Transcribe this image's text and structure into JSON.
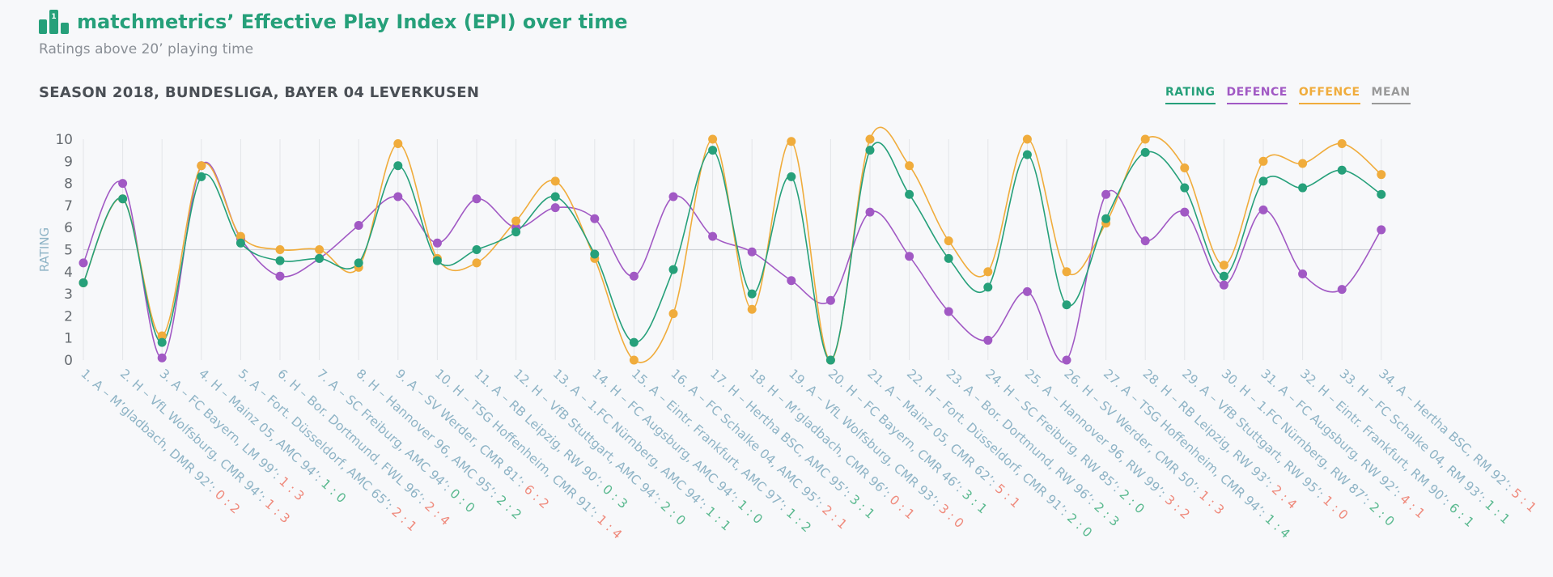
{
  "header": {
    "title": "matchmetrics’ Effective Play Index (EPI) over time",
    "subtitle": "Ratings above 20’ playing time",
    "season": "SEASON 2018, BUNDESLIGA, BAYER 04 LEVERKUSEN",
    "icon": "podium-icon"
  },
  "legend": {
    "rating": "RATING",
    "defence": "DEFENCE",
    "offence": "OFFENCE",
    "mean": "MEAN"
  },
  "colors": {
    "rating": "#26a07a",
    "defence": "#a159c4",
    "offence": "#f0ac3c",
    "mean": "#999999",
    "score_win": "#5ab98f",
    "score_loss": "#ef8a7c",
    "tick": "#8fb4c6"
  },
  "chart_data": {
    "type": "line",
    "ylabel": "RATING",
    "ylim": [
      0,
      10
    ],
    "yticks": [
      0,
      1,
      2,
      3,
      4,
      5,
      6,
      7,
      8,
      9,
      10
    ],
    "mean_line": 5,
    "categories": [
      {
        "label": "1. A – M’gladbach, DMR 92’: ",
        "score": "0 : 2",
        "result": "loss"
      },
      {
        "label": "2. H – VfL Wolfsburg, CMR 94’: ",
        "score": "1 : 3",
        "result": "loss"
      },
      {
        "label": "3. A – FC Bayern, LM 99’: ",
        "score": "1 : 3",
        "result": "loss"
      },
      {
        "label": "4. H – Mainz 05, AMC 94’: ",
        "score": "1 : 0",
        "result": "win"
      },
      {
        "label": "5. A – Fort. Düsseldorf, AMC 65’: ",
        "score": "2 : 1",
        "result": "loss"
      },
      {
        "label": "6. H – Bor. Dortmund, FWL 96’: ",
        "score": "2 : 4",
        "result": "loss"
      },
      {
        "label": "7. A – SC Freiburg, AMC 94’: ",
        "score": "0 : 0",
        "result": "draw"
      },
      {
        "label": "8. H – Hannover 96, AMC 95’: ",
        "score": "2 : 2",
        "result": "draw"
      },
      {
        "label": "9. A – SV Werder, CMR 81’: ",
        "score": "6 : 2",
        "result": "loss"
      },
      {
        "label": "10. H – TSG Hoffenheim, CMR 91’: ",
        "score": "1 : 4",
        "result": "loss"
      },
      {
        "label": "11. A – RB Leipzig, RW 90’: ",
        "score": "0 : 3",
        "result": "win"
      },
      {
        "label": "12. H – VfB Stuttgart, AMC 94’: ",
        "score": "2 : 0",
        "result": "win"
      },
      {
        "label": "13. A – 1.FC Nürnberg, AMC 94’: ",
        "score": "1 : 1",
        "result": "draw"
      },
      {
        "label": "14. H – FC Augsburg, AMC 94’: ",
        "score": "1 : 0",
        "result": "win"
      },
      {
        "label": "15. A – Eintr. Frankfurt, AMC 97’: ",
        "score": "1 : 2",
        "result": "win"
      },
      {
        "label": "16. A – FC Schalke 04, AMC 95’: ",
        "score": "2 : 1",
        "result": "loss"
      },
      {
        "label": "17. H – Hertha BSC, AMC 95’: ",
        "score": "3 : 1",
        "result": "win"
      },
      {
        "label": "18. H – M’gladbach, CMR 96’: ",
        "score": "0 : 1",
        "result": "loss"
      },
      {
        "label": "19. A – VfL Wolfsburg, CMR 93’: ",
        "score": "3 : 0",
        "result": "loss"
      },
      {
        "label": "20. H – FC Bayern, CMR 46’: ",
        "score": "3 : 1",
        "result": "win"
      },
      {
        "label": "21. A – Mainz 05, CMR 62’: ",
        "score": "5 : 1",
        "result": "loss"
      },
      {
        "label": "22. H – Fort. Düsseldorf, CMR 91’: ",
        "score": "2 : 0",
        "result": "win"
      },
      {
        "label": "23. A – Bor. Dortmund, RW 96’: ",
        "score": "2 : 3",
        "result": "win"
      },
      {
        "label": "24. H – SC Freiburg, RW 85’: ",
        "score": "2 : 0",
        "result": "win"
      },
      {
        "label": "25. A – Hannover 96, RW 99’: ",
        "score": "3 : 2",
        "result": "loss"
      },
      {
        "label": "26. H – SV Werder, CMR 50’: ",
        "score": "1 : 3",
        "result": "loss"
      },
      {
        "label": "27. A – TSG Hoffenheim, CMR 94’: ",
        "score": "1 : 4",
        "result": "win"
      },
      {
        "label": "28. H – RB Leipzig, RW 93’: ",
        "score": "2 : 4",
        "result": "loss"
      },
      {
        "label": "29. A – VfB Stuttgart, RW 95’: ",
        "score": "1 : 0",
        "result": "loss"
      },
      {
        "label": "30. H – 1.FC Nürnberg, RW 87’: ",
        "score": "2 : 0",
        "result": "win"
      },
      {
        "label": "31. A – FC Augsburg, RW 92’: ",
        "score": "4 : 1",
        "result": "loss"
      },
      {
        "label": "32. H – Eintr. Frankfurt, RM 90’: ",
        "score": "6 : 1",
        "result": "win"
      },
      {
        "label": "33. H – FC Schalke 04, RM 93’: ",
        "score": "1 : 1",
        "result": "draw"
      },
      {
        "label": "34. A – Hertha BSC, RM 92’: ",
        "score": "5 : 1",
        "result": "loss"
      }
    ],
    "series": [
      {
        "name": "RATING",
        "key": "rating",
        "values": [
          3.5,
          7.3,
          0.8,
          8.3,
          5.3,
          4.5,
          4.6,
          4.4,
          8.8,
          4.5,
          5.0,
          5.8,
          7.4,
          4.8,
          0.8,
          4.1,
          9.5,
          3.0,
          8.3,
          0.0,
          9.5,
          7.5,
          4.6,
          3.3,
          9.3,
          2.5,
          6.4,
          9.4,
          7.8,
          3.8,
          8.1,
          7.8,
          8.6,
          7.5
        ]
      },
      {
        "name": "DEFENCE",
        "key": "defence",
        "values": [
          4.4,
          8.0,
          0.1,
          8.8,
          5.5,
          3.8,
          4.6,
          6.1,
          7.4,
          5.3,
          7.3,
          6.0,
          6.9,
          6.4,
          3.8,
          7.4,
          5.6,
          4.9,
          3.6,
          2.7,
          6.7,
          4.7,
          2.2,
          0.9,
          3.1,
          0.0,
          7.5,
          5.4,
          6.7,
          3.4,
          6.8,
          3.9,
          3.2,
          5.9
        ]
      },
      {
        "name": "OFFENCE",
        "key": "offence",
        "values": [
          3.5,
          7.3,
          1.1,
          8.8,
          5.6,
          5.0,
          5.0,
          4.2,
          9.8,
          4.6,
          4.4,
          6.3,
          8.1,
          4.6,
          0.0,
          2.1,
          10.0,
          2.3,
          9.9,
          0.0,
          10.0,
          8.8,
          5.4,
          4.0,
          10.0,
          4.0,
          6.2,
          10.0,
          8.7,
          4.3,
          9.0,
          8.9,
          9.8,
          8.4
        ]
      }
    ]
  }
}
